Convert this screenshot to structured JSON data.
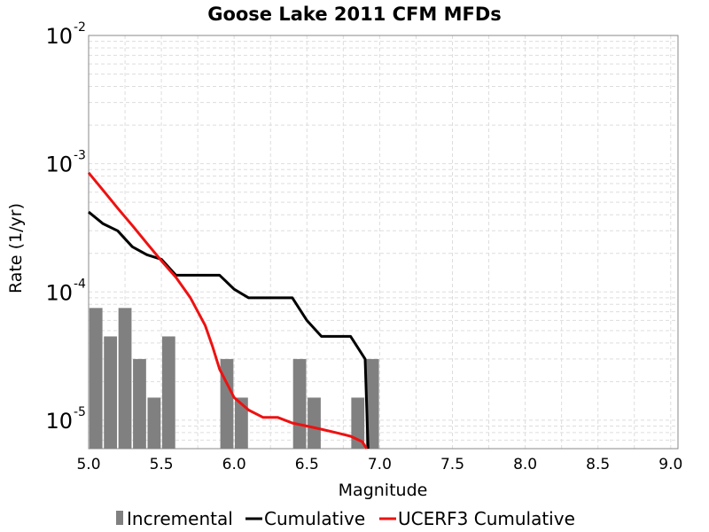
{
  "chart_data": {
    "type": "bar+line",
    "title": "Goose Lake 2011 CFM MFDs",
    "xlabel": "Magnitude",
    "ylabel": "Rate (1/yr)",
    "xlim": [
      5.0,
      9.05
    ],
    "ylim": [
      6e-06,
      0.01
    ],
    "yscale": "log",
    "grid": true,
    "legend_position": "bottom",
    "xticks": [
      "5.0",
      "5.5",
      "6.0",
      "6.5",
      "7.0",
      "7.5",
      "8.0",
      "8.5",
      "9.0"
    ],
    "yticks": [
      {
        "base": "10",
        "exp": "-2"
      },
      {
        "base": "10",
        "exp": "-3"
      },
      {
        "base": "10",
        "exp": "-4"
      },
      {
        "base": "10",
        "exp": "-5"
      }
    ],
    "series": [
      {
        "name": "Incremental",
        "kind": "bar",
        "color": "#808080",
        "x": [
          5.05,
          5.15,
          5.25,
          5.35,
          5.45,
          5.55,
          5.95,
          6.05,
          6.45,
          6.55,
          6.85,
          6.95
        ],
        "values": [
          7.5e-05,
          4.5e-05,
          7.5e-05,
          3e-05,
          1.5e-05,
          4.5e-05,
          3e-05,
          1.5e-05,
          3e-05,
          1.5e-05,
          1.5e-05,
          3e-05
        ]
      },
      {
        "name": "Cumulative",
        "kind": "line",
        "color": "#000000",
        "x": [
          5.0,
          5.1,
          5.2,
          5.3,
          5.4,
          5.5,
          5.6,
          5.7,
          5.8,
          5.9,
          6.0,
          6.1,
          6.2,
          6.3,
          6.4,
          6.5,
          6.6,
          6.7,
          6.8,
          6.9,
          6.92
        ],
        "values": [
          0.00042,
          0.00034,
          0.0003,
          0.000225,
          0.000195,
          0.00018,
          0.000135,
          0.000135,
          0.000135,
          0.000135,
          0.000105,
          9e-05,
          9e-05,
          9e-05,
          9e-05,
          6e-05,
          4.5e-05,
          4.5e-05,
          4.5e-05,
          3e-05,
          6e-06
        ]
      },
      {
        "name": "UCERF3 Cumulative",
        "kind": "line",
        "color": "#ee1111",
        "x": [
          5.0,
          5.1,
          5.2,
          5.3,
          5.4,
          5.5,
          5.6,
          5.7,
          5.8,
          5.85,
          5.9,
          6.0,
          6.1,
          6.2,
          6.3,
          6.4,
          6.5,
          6.6,
          6.7,
          6.8,
          6.88,
          6.91
        ],
        "values": [
          0.00085,
          0.00062,
          0.00045,
          0.00033,
          0.00024,
          0.000175,
          0.00013,
          9e-05,
          5.5e-05,
          3.8e-05,
          2.5e-05,
          1.5e-05,
          1.2e-05,
          1.05e-05,
          1.05e-05,
          9.5e-06,
          9e-06,
          8.5e-06,
          8e-06,
          7.5e-06,
          6.8e-06,
          6e-06
        ]
      }
    ]
  }
}
